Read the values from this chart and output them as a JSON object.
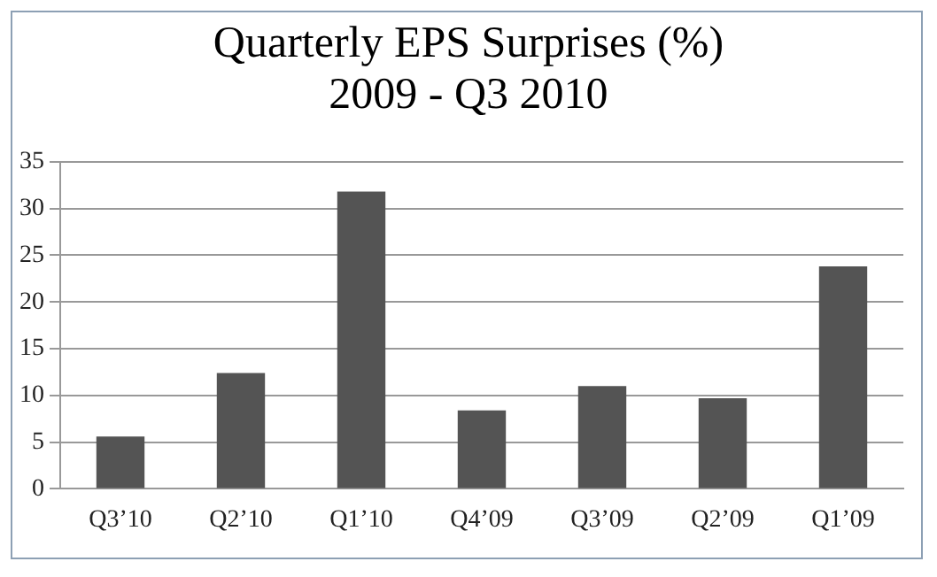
{
  "chart_data": {
    "type": "bar",
    "title": "Quarterly EPS Surprises (%)",
    "subtitle": "2009 - Q3 2010",
    "categories": [
      "Q3’10",
      "Q2’10",
      "Q1’10",
      "Q4’09",
      "Q3’09",
      "Q2’09",
      "Q1’09"
    ],
    "values": [
      5.6,
      12.4,
      31.8,
      8.4,
      11.0,
      9.7,
      23.8
    ],
    "color": "#545454",
    "ylim": [
      0,
      35
    ],
    "yticks": [
      0,
      5,
      10,
      15,
      20,
      25,
      30,
      35
    ],
    "grid": "y",
    "legend": false
  }
}
